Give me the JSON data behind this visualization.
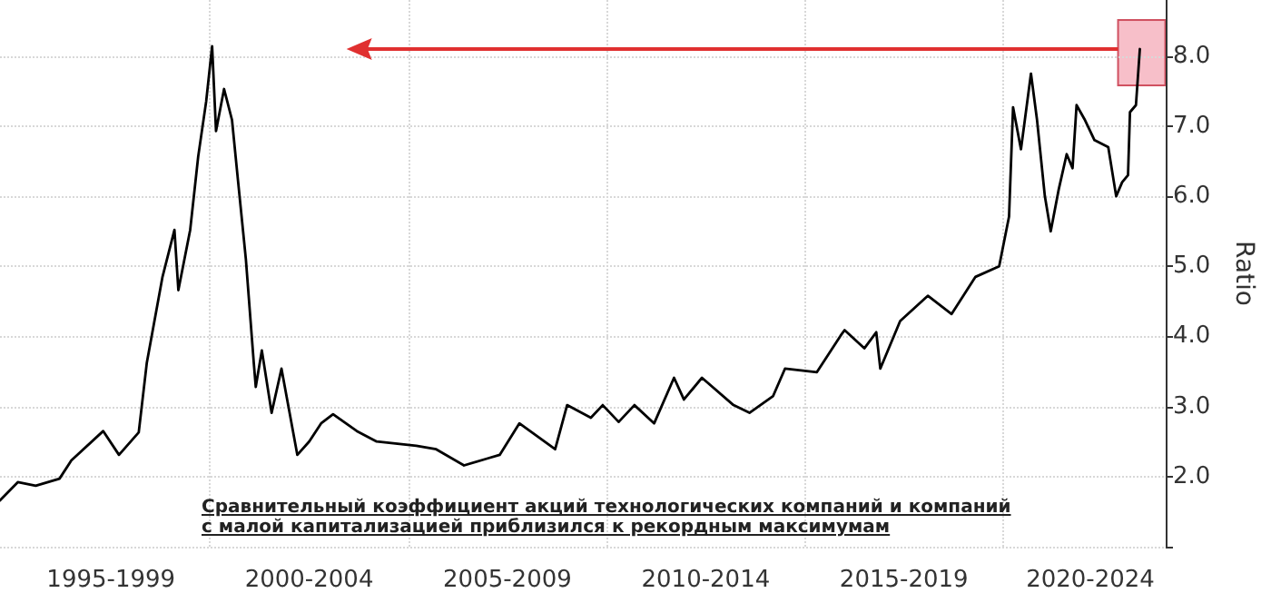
{
  "chart_data": {
    "type": "line",
    "ylabel": "Ratio",
    "annotations": [
      "Сравнительный коэффициент акций технологических компаний и компаний с малой капитализацией приблизился к рекордным максимумам"
    ],
    "xlim": [
      "1994-09-13",
      "2024-02-06"
    ],
    "xticks": [
      {
        "value": "1997-07-01",
        "label": "1995-1999"
      },
      {
        "value": "2002-07-01",
        "label": "2000-2004"
      },
      {
        "value": "2007-07-01",
        "label": "2005-2009"
      },
      {
        "value": "2012-07-01",
        "label": "2010-2014"
      },
      {
        "value": "2017-07-01",
        "label": "2015-2019"
      },
      {
        "value": "2022-03-14",
        "label": "2020-2024"
      },
      {
        "value": "2000-01-01",
        "label": null
      },
      {
        "value": "2005-01-01",
        "label": null
      },
      {
        "value": "2010-01-01",
        "label": null
      },
      {
        "value": "2015-01-01",
        "label": null
      },
      {
        "value": "2020-01-01",
        "label": null
      }
    ],
    "ylim": [
      1,
      8.8
    ],
    "yticks": [
      {
        "value": 1,
        "label": null
      },
      {
        "value": 2,
        "label": "2.0"
      },
      {
        "value": 3,
        "label": "3.0"
      },
      {
        "value": 4,
        "label": "4.0"
      },
      {
        "value": 5,
        "label": "5.0"
      },
      {
        "value": 6,
        "label": "6.0"
      },
      {
        "value": 7,
        "label": "7.0"
      },
      {
        "value": 8,
        "label": "8.0"
      }
    ],
    "grid": true,
    "series": [
      {
        "color": "#000000",
        "x": [
          "1994-09-13",
          "1995-02-24",
          "1995-08-08",
          "1996-03-14",
          "1996-07-01",
          "1997-04-21",
          "1997-09-13",
          "1998-03-14",
          "1998-05-27",
          "1998-10-19",
          "1999-02-06",
          "1999-03-14",
          "1999-07-01",
          "1999-09-13",
          "1999-11-25",
          "2000-01-19",
          "2000-02-24",
          "2000-05-08",
          "2000-07-20",
          "2000-09-13",
          "2000-11-25",
          "2001-02-06",
          "2001-02-24",
          "2001-04-21",
          "2001-07-20",
          "2001-10-19",
          "2002-03-14",
          "2002-07-01",
          "2002-10-19",
          "2003-02-06",
          "2003-09-13",
          "2004-03-14",
          "2005-03-14",
          "2005-09-13",
          "2006-05-27",
          "2007-01-01",
          "2007-04-21",
          "2007-10-19",
          "2008-09-13",
          "2009-01-01",
          "2009-08-08",
          "2009-11-25",
          "2010-04-21",
          "2010-09-13",
          "2011-03-14",
          "2011-09-13",
          "2011-12-13",
          "2012-05-27",
          "2013-03-14",
          "2013-08-08",
          "2014-03-14",
          "2014-07-01",
          "2015-04-21",
          "2015-11-25",
          "2016-01-01",
          "2016-07-01",
          "2016-10-19",
          "2016-11-25",
          "2017-05-27",
          "2018-02-06",
          "2018-09-13",
          "2019-04-21",
          "2019-11-25",
          "2020-02-24",
          "2020-04-01",
          "2020-06-13",
          "2020-09-13",
          "2020-11-07",
          "2021-01-19",
          "2021-03-14",
          "2021-05-27",
          "2021-08-08",
          "2021-10-01",
          "2021-11-07",
          "2022-01-19",
          "2022-04-21",
          "2022-08-26",
          "2022-11-07",
          "2023-01-01",
          "2023-02-24",
          "2023-03-14",
          "2023-05-08",
          "2023-06-13"
        ],
        "values": [
          1.66,
          1.92,
          1.87,
          1.97,
          2.23,
          2.65,
          2.31,
          2.63,
          3.62,
          4.85,
          5.52,
          4.66,
          5.52,
          6.57,
          7.35,
          8.14,
          6.93,
          7.53,
          7.09,
          6.23,
          5.1,
          3.62,
          3.28,
          3.8,
          2.91,
          3.54,
          2.31,
          2.5,
          2.76,
          2.89,
          2.65,
          2.5,
          2.44,
          2.39,
          2.16,
          2.26,
          2.31,
          2.76,
          2.39,
          3.02,
          2.84,
          3.02,
          2.78,
          3.02,
          2.76,
          3.41,
          3.1,
          3.41,
          3.02,
          2.91,
          3.15,
          3.54,
          3.49,
          4.01,
          4.09,
          3.83,
          4.06,
          3.54,
          4.22,
          4.58,
          4.32,
          4.85,
          5.0,
          5.71,
          7.27,
          6.67,
          7.75,
          7.1,
          6.0,
          5.5,
          6.1,
          6.6,
          6.4,
          7.3,
          7.1,
          6.8,
          6.7,
          6.0,
          6.2,
          6.3,
          7.2,
          7.3,
          8.1
        ]
      }
    ]
  }
}
